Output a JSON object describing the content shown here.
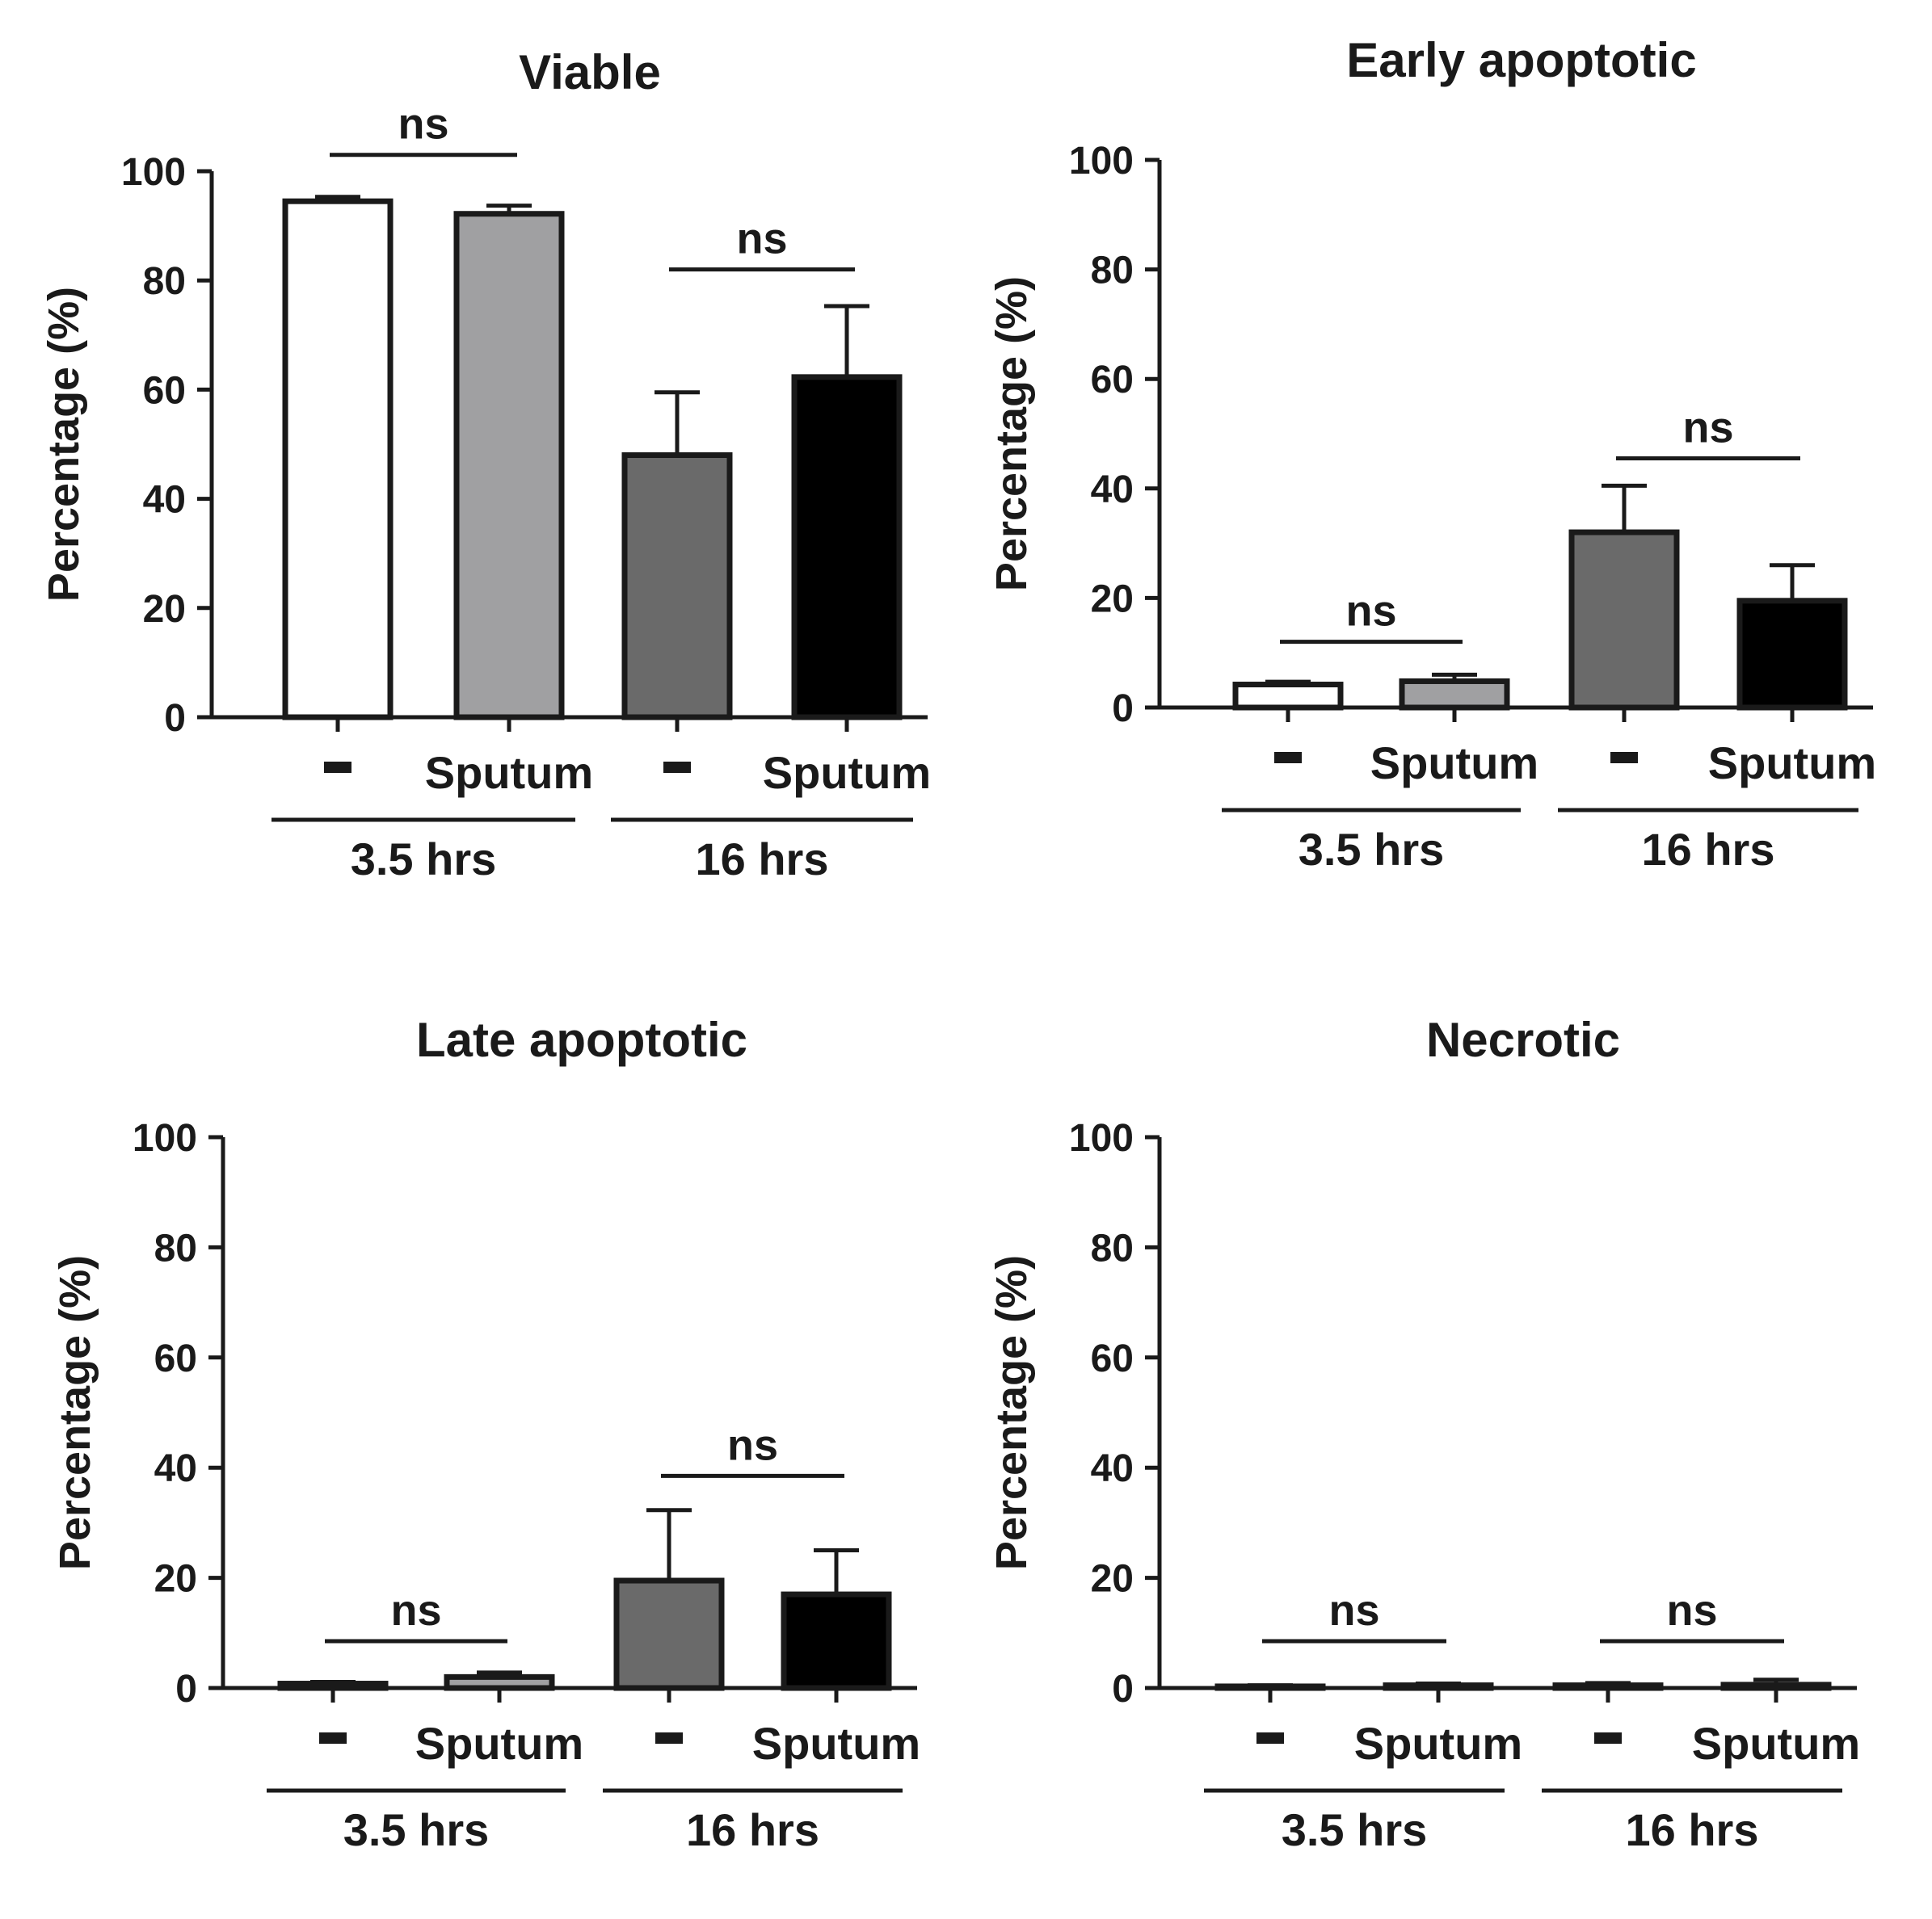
{
  "y_axis_label": "Percentage (%)",
  "significance_label": "ns",
  "colors": {
    "control_3_5": "#ffffff",
    "sputum_3_5": "#a0a0a2",
    "control_16": "#6a6a6a",
    "sputum_16": "#000000",
    "ink": "#1a1a1a"
  },
  "chart_data": [
    {
      "type": "bar",
      "title": "Viable",
      "xlabel": "",
      "ylabel": "Percentage (%)",
      "ylim": [
        0,
        100
      ],
      "yticks": [
        0,
        20,
        40,
        60,
        80,
        100
      ],
      "categories": [
        "-",
        "Sputum",
        "-",
        "Sputum"
      ],
      "groups": [
        {
          "label": "3.5 hrs",
          "members": [
            0,
            1
          ]
        },
        {
          "label": "16 hrs",
          "members": [
            2,
            3
          ]
        }
      ],
      "values": [
        94.5,
        92.2,
        48,
        62.3
      ],
      "errors": [
        0.8,
        1.5,
        11.5,
        13
      ],
      "significance": [
        {
          "from": 0,
          "to": 1,
          "label": "ns",
          "level": 103
        },
        {
          "from": 2,
          "to": 3,
          "label": "ns",
          "level": 82
        }
      ]
    },
    {
      "type": "bar",
      "title": "Early apoptotic",
      "xlabel": "",
      "ylabel": "Percentage (%)",
      "ylim": [
        0,
        100
      ],
      "yticks": [
        0,
        20,
        40,
        60,
        80,
        100
      ],
      "categories": [
        "-",
        "Sputum",
        "-",
        "Sputum"
      ],
      "groups": [
        {
          "label": "3.5 hrs",
          "members": [
            0,
            1
          ]
        },
        {
          "label": "16 hrs",
          "members": [
            2,
            3
          ]
        }
      ],
      "values": [
        4.2,
        4.8,
        32,
        19.5
      ],
      "errors": [
        0.5,
        1.2,
        8.5,
        6.5
      ],
      "significance": [
        {
          "from": 0,
          "to": 1,
          "label": "ns",
          "level": 12
        },
        {
          "from": 2,
          "to": 3,
          "label": "ns",
          "level": 45.5
        }
      ]
    },
    {
      "type": "bar",
      "title": "Late apoptotic",
      "xlabel": "",
      "ylabel": "Percentage (%)",
      "ylim": [
        0,
        100
      ],
      "yticks": [
        0,
        20,
        40,
        60,
        80,
        100
      ],
      "categories": [
        "-",
        "Sputum",
        "-",
        "Sputum"
      ],
      "groups": [
        {
          "label": "3.5 hrs",
          "members": [
            0,
            1
          ]
        },
        {
          "label": "16 hrs",
          "members": [
            2,
            3
          ]
        }
      ],
      "values": [
        0.8,
        2,
        19.5,
        17
      ],
      "errors": [
        0.3,
        0.8,
        12.8,
        8
      ],
      "significance": [
        {
          "from": 0,
          "to": 1,
          "label": "ns",
          "level": 8.5
        },
        {
          "from": 2,
          "to": 3,
          "label": "ns",
          "level": 38.5
        }
      ]
    },
    {
      "type": "bar",
      "title": "Necrotic",
      "xlabel": "",
      "ylabel": "Percentage (%)",
      "ylim": [
        0,
        100
      ],
      "yticks": [
        0,
        20,
        40,
        60,
        80,
        100
      ],
      "categories": [
        "-",
        "Sputum",
        "-",
        "Sputum"
      ],
      "groups": [
        {
          "label": "3.5 hrs",
          "members": [
            0,
            1
          ]
        },
        {
          "label": "16 hrs",
          "members": [
            2,
            3
          ]
        }
      ],
      "values": [
        0.3,
        0.5,
        0.5,
        0.6
      ],
      "errors": [
        0.2,
        0.3,
        0.4,
        0.9
      ],
      "significance": [
        {
          "from": 0,
          "to": 1,
          "label": "ns",
          "level": 8.5
        },
        {
          "from": 2,
          "to": 3,
          "label": "ns",
          "level": 8.5
        }
      ]
    }
  ]
}
